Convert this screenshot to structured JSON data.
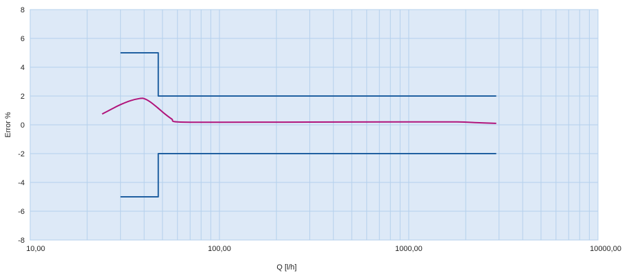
{
  "chart_data": {
    "type": "line",
    "xlabel": "Q [l/h]",
    "ylabel": "Error %",
    "x_scale": "log",
    "xlim": [
      10,
      10000
    ],
    "ylim": [
      -8,
      8
    ],
    "x_ticks": [
      10,
      100,
      1000,
      10000
    ],
    "x_tick_labels": [
      "10,00",
      "100,00",
      "1000,00",
      "10000,00"
    ],
    "y_ticks": [
      -8,
      -6,
      -4,
      -2,
      0,
      2,
      4,
      6,
      8
    ],
    "y_tick_labels": [
      "-8",
      "-6",
      "-4",
      "-2",
      "0",
      "2",
      "4",
      "6",
      "8"
    ],
    "grid": true,
    "legend": "none",
    "background_color": "#dde9f7",
    "grid_color": "#b4d0ec",
    "series": [
      {
        "color": "#1f5fa0",
        "points": [
          [
            30,
            5
          ],
          [
            47.5,
            5
          ],
          [
            47.5,
            2
          ],
          [
            2900,
            2
          ]
        ]
      },
      {
        "color": "#1f5fa0",
        "points": [
          [
            30,
            -5
          ],
          [
            47.5,
            -5
          ],
          [
            47.5,
            -2
          ],
          [
            2900,
            -2
          ]
        ]
      },
      {
        "color": "#b0137a",
        "points": [
          [
            24,
            0.75
          ],
          [
            27,
            1.1
          ],
          [
            30,
            1.4
          ],
          [
            34,
            1.68
          ],
          [
            38,
            1.83
          ],
          [
            40,
            1.82
          ],
          [
            43,
            1.6
          ],
          [
            47,
            1.2
          ],
          [
            51,
            0.8
          ],
          [
            56,
            0.4
          ],
          [
            60,
            0.2
          ],
          [
            100,
            0.18
          ],
          [
            300,
            0.19
          ],
          [
            1000,
            0.2
          ],
          [
            1800,
            0.2
          ],
          [
            2300,
            0.15
          ],
          [
            2900,
            0.1
          ]
        ]
      }
    ]
  }
}
